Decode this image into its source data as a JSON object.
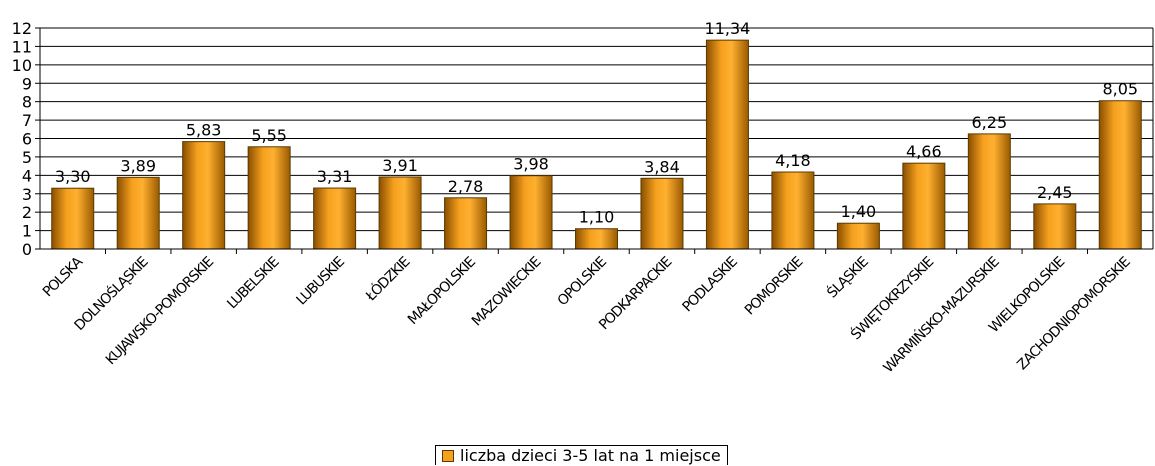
{
  "chart_data": {
    "type": "bar",
    "categories": [
      "POLSKA",
      "DOLNOŚLĄSKIE",
      "KUJAWSKO-POMORSKIE",
      "LUBELSKIE",
      "LUBUSKIE",
      "ŁÓDZKIE",
      "MAŁOPOLSKIE",
      "MAZOWIECKIE",
      "OPOLSKIE",
      "PODKARPACKIE",
      "PODLASKIE",
      "POMORSKIE",
      "ŚLĄSKIE",
      "ŚWIĘTOKRZYSKIE",
      "WARMIŃSKO-MAZURSKIE",
      "WIELKOPOLSKIE",
      "ZACHODNIOPOMORSKIE"
    ],
    "values": [
      3.3,
      3.89,
      5.83,
      5.55,
      3.31,
      3.91,
      2.78,
      3.98,
      1.1,
      3.84,
      11.34,
      4.18,
      1.4,
      4.66,
      6.25,
      2.45,
      8.05
    ],
    "value_labels": [
      "3,30",
      "3,89",
      "5,83",
      "5,55",
      "3,31",
      "3,91",
      "2,78",
      "3,98",
      "1,10",
      "3,84",
      "11,34",
      "4,18",
      "1,40",
      "4,66",
      "6,25",
      "2,45",
      "8,05"
    ],
    "series": [
      {
        "name": "liczba dzieci 3-5 lat na 1 miejsce"
      }
    ],
    "ylim": [
      0,
      12
    ],
    "yticks": [
      "0",
      "1",
      "2",
      "3",
      "4",
      "5",
      "6",
      "7",
      "8",
      "9",
      "10",
      "11",
      "12"
    ],
    "grid": true,
    "legend_position": "bottom",
    "bar_color": "#f5a01e",
    "bar_edge_color": "#5a3a00"
  }
}
